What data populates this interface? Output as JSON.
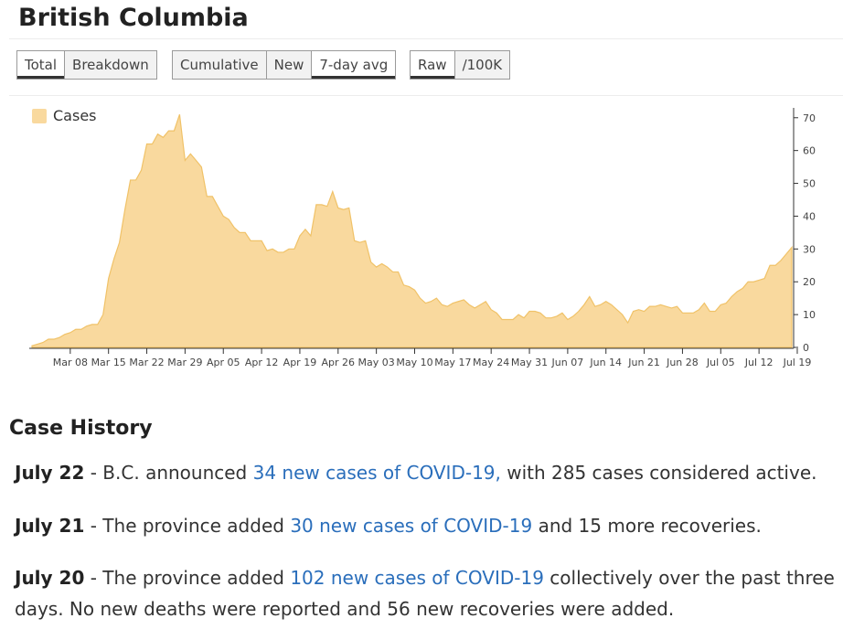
{
  "page_title": "British Columbia",
  "controls": {
    "group1": [
      {
        "label": "Total",
        "active": true
      },
      {
        "label": "Breakdown",
        "active": false
      }
    ],
    "group2": [
      {
        "label": "Cumulative",
        "active": false
      },
      {
        "label": "New",
        "active": false
      },
      {
        "label": "7-day avg",
        "active": true
      }
    ],
    "group3": [
      {
        "label": "Raw",
        "active": true
      },
      {
        "label": "/100K",
        "active": false
      }
    ]
  },
  "colors": {
    "area_fill": "#f9d99e",
    "area_stroke": "#f0c268",
    "link": "#2a6ebb"
  },
  "chart_data": {
    "type": "area",
    "legend": [
      "Cases"
    ],
    "x_ticks": [
      "Mar 08",
      "Mar 15",
      "Mar 22",
      "Mar 29",
      "Apr 05",
      "Apr 12",
      "Apr 19",
      "Apr 26",
      "May 03",
      "May 10",
      "May 17",
      "May 24",
      "May 31",
      "Jun 07",
      "Jun 14",
      "Jun 21",
      "Jun 28",
      "Jul 05",
      "Jul 12",
      "Jul 19"
    ],
    "y_ticks": [
      0,
      10,
      20,
      30,
      40,
      50,
      60,
      70
    ],
    "ylim": [
      0,
      73
    ],
    "y_axis_side": "right",
    "start_date": "2020-03-01",
    "series": [
      {
        "name": "Cases",
        "values": [
          0.5,
          1,
          1.5,
          2.5,
          2.5,
          3,
          4,
          4.5,
          5.5,
          5.5,
          6.5,
          7,
          7,
          10,
          21,
          27,
          32,
          42,
          51,
          51,
          54,
          62,
          62,
          65,
          64,
          66,
          66,
          71,
          57,
          59,
          57,
          55,
          46,
          46,
          43,
          40,
          39,
          36.5,
          35,
          35,
          32.5,
          32.5,
          32.5,
          29.5,
          30,
          29,
          29,
          30,
          30,
          34,
          36,
          34,
          43.5,
          43.5,
          43,
          47.5,
          42.5,
          42,
          42.5,
          32.5,
          32,
          32.5,
          26,
          24.5,
          25.5,
          24.5,
          23,
          23,
          19,
          18.5,
          17.5,
          15,
          13.5,
          14,
          15,
          13,
          12.5,
          13.5,
          14,
          14.5,
          13,
          12,
          13,
          14,
          11.5,
          10.5,
          8.5,
          8.5,
          8.5,
          10,
          9,
          11,
          11,
          10.5,
          9,
          9,
          9.5,
          10.5,
          8.5,
          9.5,
          11,
          13,
          15.5,
          12.5,
          13,
          14,
          13,
          11.5,
          10,
          7.5,
          11,
          11.5,
          11,
          12.5,
          12.5,
          13,
          12.5,
          12,
          12.5,
          10.5,
          10.5,
          10.5,
          11.5,
          13.5,
          11,
          11,
          13,
          13.5,
          15.5,
          17,
          18,
          20,
          20,
          20.5,
          21,
          25,
          25,
          26.5,
          28.5,
          30.5
        ]
      }
    ]
  },
  "history": {
    "title": "Case History",
    "entries": [
      {
        "date": "July 22",
        "prefix": " - B.C. announced ",
        "link": "34 new cases of COVID-19,",
        "suffix": " with 285 cases considered active."
      },
      {
        "date": "July 21",
        "prefix": " - The province added ",
        "link": "30 new cases of COVID-19",
        "suffix": " and 15 more recoveries."
      },
      {
        "date": "July 20",
        "prefix": " - The province added ",
        "link": "102 new cases of COVID-19",
        "suffix": " collectively over the past three days. No new deaths were reported and 56 new recoveries were added."
      }
    ]
  }
}
